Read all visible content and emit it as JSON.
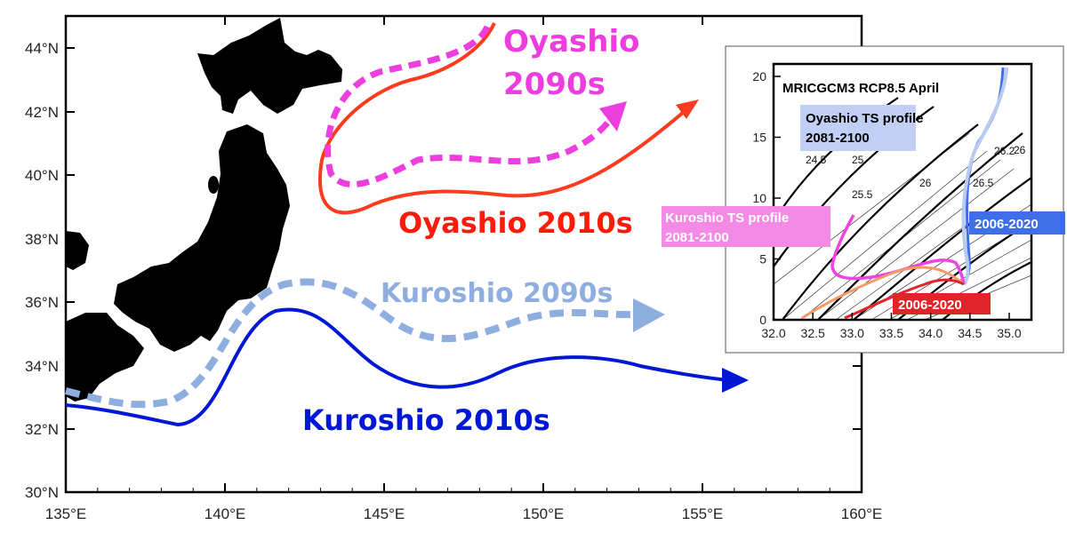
{
  "map": {
    "lat_ticks": [
      "44°N",
      "42°N",
      "40°N",
      "38°N",
      "36°N",
      "34°N",
      "32°N",
      "30°N"
    ],
    "lon_ticks": [
      "135°E",
      "140°E",
      "145°E",
      "150°E",
      "155°E",
      "160°E"
    ],
    "lon_range": [
      135,
      160
    ],
    "lat_range": [
      30,
      45
    ],
    "labels": {
      "oyashio_2090": "Oyashio",
      "oyashio_2090_year": "2090s",
      "oyashio_2010": "Oyashio 2010s",
      "kuroshio_2090": "Kuroshio 2090s",
      "kuroshio_2010": "Kuroshio 2010s"
    },
    "colors": {
      "oyashio_2010": "#ff3b1f",
      "oyashio_2090": "#ee3ddf",
      "kuroshio_2010": "#0018d6",
      "kuroshio_2090": "#8faee0",
      "land": "#000000"
    }
  },
  "inset": {
    "title": "MRICGCM3 RCP8.5 April",
    "oyashio_profile_label": "Oyashio TS profile",
    "oyashio_profile_years": "2081-2100",
    "kuroshio_profile_label": "Kuroshio TS profile",
    "kuroshio_profile_years": "2081-2100",
    "label_2006_blue": "2006-2020",
    "label_2006_red": "2006-2020",
    "x_ticks": [
      "32.0",
      "32.5",
      "33.0",
      "33.5",
      "34.0",
      "34.5",
      "35.0"
    ],
    "y_ticks": [
      "0",
      "5",
      "10",
      "15",
      "20"
    ],
    "isopycnal_labels": [
      "24.5",
      "25",
      "25.5",
      "26",
      "26.2",
      "26.5",
      "26"
    ]
  }
}
